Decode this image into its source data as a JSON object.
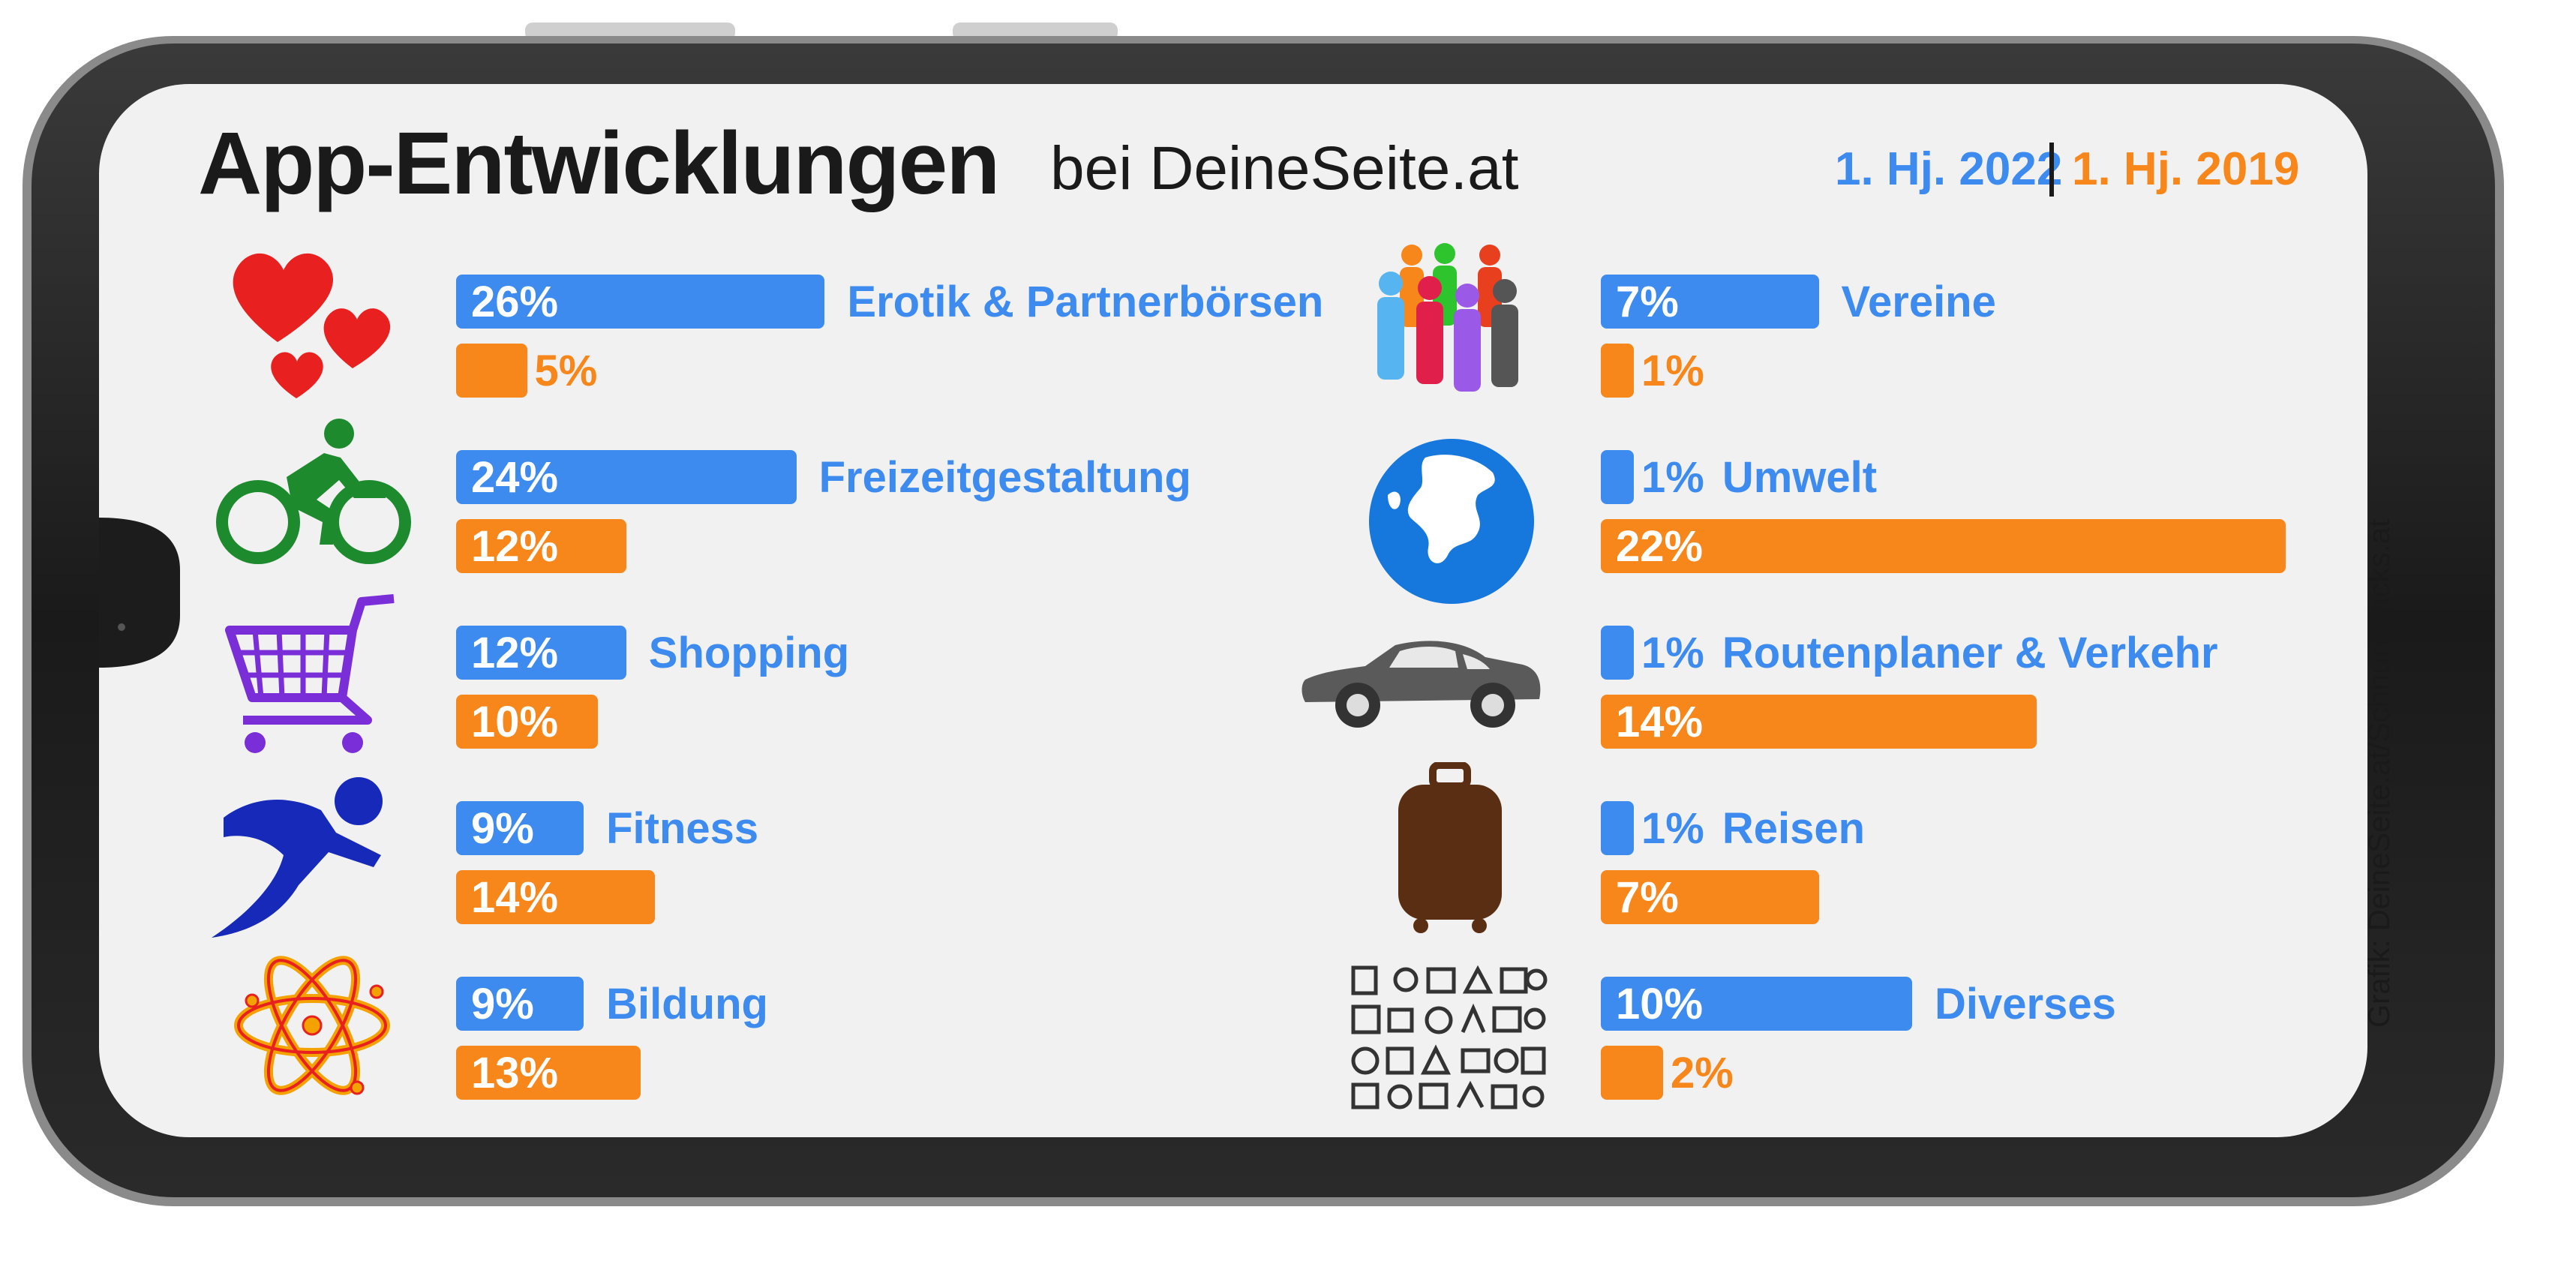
{
  "header": {
    "title": "App-Entwicklungen",
    "subtitle": "bei DeineSeite.at",
    "legend_2022": "1. Hj. 2022",
    "legend_2019": "1. Hj. 2019"
  },
  "credit": "Grafik: DeineSeite.at/Schnurstracks.at",
  "colors": {
    "blue": "#3d8bef",
    "orange": "#f7861b",
    "frame": "#1c1c1c",
    "screen": "#f1f1f1"
  },
  "chart_data": {
    "type": "bar",
    "orientation": "horizontal",
    "title": "App-Entwicklungen bei DeineSeite.at",
    "series": [
      {
        "name": "1. Hj. 2022",
        "color": "#3d8bef"
      },
      {
        "name": "1. Hj. 2019",
        "color": "#f7861b"
      }
    ],
    "unit": "%",
    "categories": [
      {
        "name": "Erotik & Partnerbörsen",
        "icon": "hearts-icon",
        "v2022": 26,
        "v2019": 5
      },
      {
        "name": "Freizeitgestaltung",
        "icon": "cyclist-icon",
        "v2022": 24,
        "v2019": 12
      },
      {
        "name": "Shopping",
        "icon": "shopping-cart-icon",
        "v2022": 12,
        "v2019": 10
      },
      {
        "name": "Fitness",
        "icon": "runner-icon",
        "v2022": 9,
        "v2019": 14
      },
      {
        "name": "Bildung",
        "icon": "atom-icon",
        "v2022": 9,
        "v2019": 13
      },
      {
        "name": "Vereine",
        "icon": "people-group-icon",
        "v2022": 7,
        "v2019": 1
      },
      {
        "name": "Umwelt",
        "icon": "globe-icon",
        "v2022": 1,
        "v2019": 22
      },
      {
        "name": "Routenplaner & Verkehr",
        "icon": "car-icon",
        "v2022": 1,
        "v2019": 14
      },
      {
        "name": "Reisen",
        "icon": "suitcase-icon",
        "v2022": 1,
        "v2019": 7
      },
      {
        "name": "Diverses",
        "icon": "misc-icons-grid-icon",
        "v2022": 10,
        "v2019": 2
      }
    ]
  }
}
